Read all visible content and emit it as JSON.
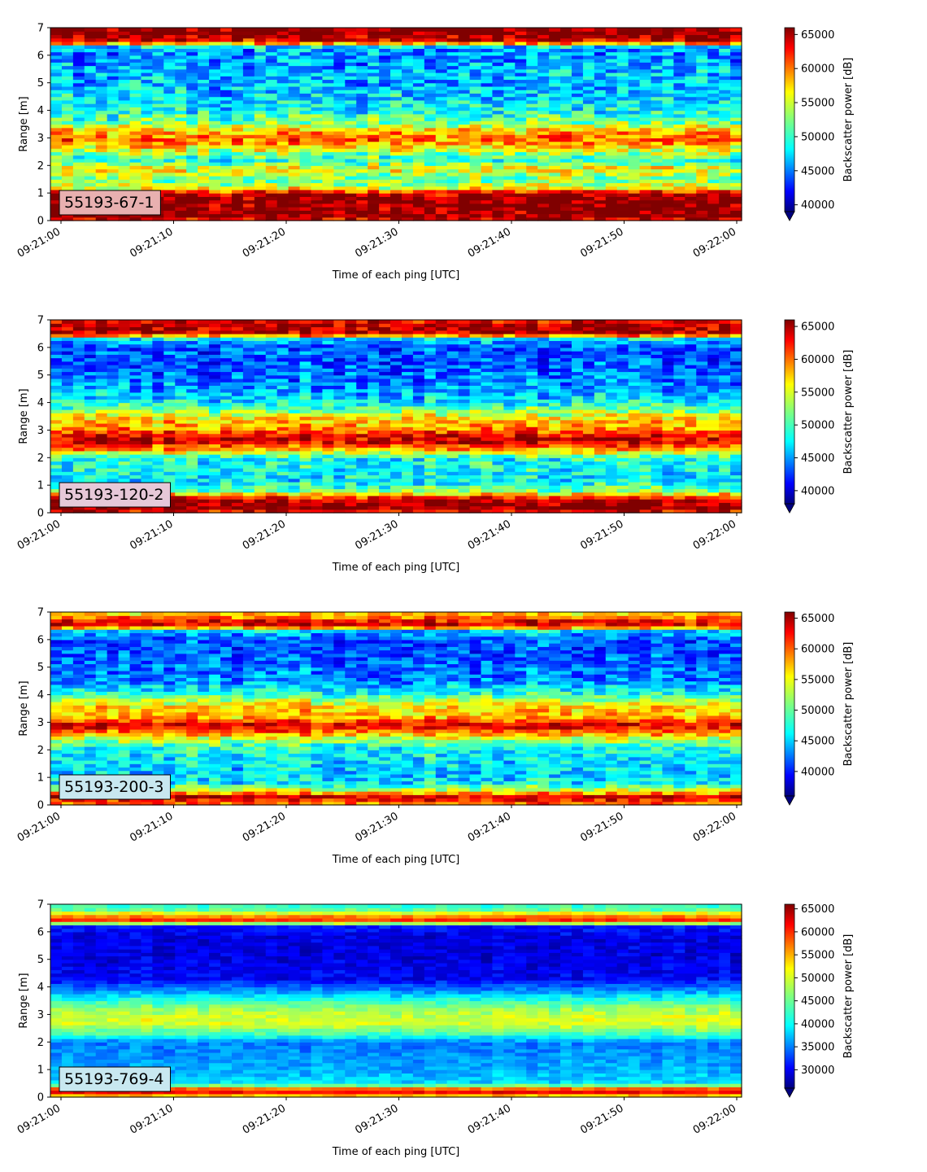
{
  "chart_data": [
    {
      "type": "heatmap",
      "label_box": "55193-67-1",
      "xlabel": "Time of each ping [UTC]",
      "ylabel": "Range [m]",
      "x_ticks": [
        "09:21:00",
        "09:21:10",
        "09:21:20",
        "09:21:30",
        "09:21:40",
        "09:21:50",
        "09:22:00"
      ],
      "y_ticks": [
        "0",
        "1",
        "2",
        "3",
        "4",
        "5",
        "6",
        "7"
      ],
      "ylim": [
        0,
        7
      ],
      "colorbar_label": "Backscatter power [dB]",
      "colorbar_ticks": [
        "40000",
        "45000",
        "50000",
        "55000",
        "60000",
        "65000"
      ],
      "vmin": 39000,
      "vmax": 66000,
      "label_box_color": "#e8b0b0",
      "profile": [
        [
          0.0,
          63000
        ],
        [
          0.2,
          66000
        ],
        [
          0.5,
          66000
        ],
        [
          0.8,
          66000
        ],
        [
          1.0,
          64000
        ],
        [
          1.2,
          55000
        ],
        [
          1.5,
          52000
        ],
        [
          1.9,
          56000
        ],
        [
          2.2,
          50000
        ],
        [
          2.6,
          55000
        ],
        [
          2.9,
          60000
        ],
        [
          3.2,
          58000
        ],
        [
          3.6,
          52000
        ],
        [
          4.0,
          49000
        ],
        [
          4.5,
          48000
        ],
        [
          5.0,
          47000
        ],
        [
          5.5,
          47000
        ],
        [
          6.0,
          46000
        ],
        [
          6.3,
          47000
        ],
        [
          6.5,
          63000
        ],
        [
          6.8,
          66000
        ],
        [
          7.0,
          66000
        ]
      ],
      "jitter": 7000
    },
    {
      "type": "heatmap",
      "label_box": "55193-120-2",
      "xlabel": "Time of each ping [UTC]",
      "ylabel": "Range [m]",
      "x_ticks": [
        "09:21:00",
        "09:21:10",
        "09:21:20",
        "09:21:30",
        "09:21:40",
        "09:21:50",
        "09:22:00"
      ],
      "y_ticks": [
        "0",
        "1",
        "2",
        "3",
        "4",
        "5",
        "6",
        "7"
      ],
      "ylim": [
        0,
        7
      ],
      "colorbar_label": "Backscatter power [dB]",
      "colorbar_ticks": [
        "40000",
        "45000",
        "50000",
        "55000",
        "60000",
        "65000"
      ],
      "vmin": 38000,
      "vmax": 66000,
      "label_box_color": "#e6c8d8",
      "profile": [
        [
          0.0,
          62000
        ],
        [
          0.2,
          66000
        ],
        [
          0.5,
          64000
        ],
        [
          0.8,
          52000
        ],
        [
          1.2,
          48000
        ],
        [
          1.6,
          49000
        ],
        [
          2.0,
          49000
        ],
        [
          2.3,
          58000
        ],
        [
          2.6,
          64000
        ],
        [
          2.8,
          63000
        ],
        [
          3.1,
          58000
        ],
        [
          3.4,
          57000
        ],
        [
          3.8,
          51000
        ],
        [
          4.2,
          47000
        ],
        [
          4.8,
          45000
        ],
        [
          5.5,
          44000
        ],
        [
          6.0,
          44000
        ],
        [
          6.3,
          47000
        ],
        [
          6.5,
          64000
        ],
        [
          6.8,
          65000
        ],
        [
          7.0,
          62000
        ]
      ],
      "jitter": 6500
    },
    {
      "type": "heatmap",
      "label_box": "55193-200-3",
      "xlabel": "Time of each ping [UTC]",
      "ylabel": "Range [m]",
      "x_ticks": [
        "09:21:00",
        "09:21:10",
        "09:21:20",
        "09:21:30",
        "09:21:40",
        "09:21:50",
        "09:22:00"
      ],
      "y_ticks": [
        "0",
        "1",
        "2",
        "3",
        "4",
        "5",
        "6",
        "7"
      ],
      "ylim": [
        0,
        7
      ],
      "colorbar_label": "Backscatter power [dB]",
      "colorbar_ticks": [
        "40000",
        "45000",
        "50000",
        "55000",
        "60000",
        "65000"
      ],
      "vmin": 36000,
      "vmax": 66000,
      "label_box_color": "#c8e8f0",
      "profile": [
        [
          0.0,
          58000
        ],
        [
          0.3,
          64000
        ],
        [
          0.5,
          55000
        ],
        [
          0.8,
          47000
        ],
        [
          1.2,
          46000
        ],
        [
          1.7,
          47000
        ],
        [
          2.1,
          48000
        ],
        [
          2.4,
          53000
        ],
        [
          2.7,
          60000
        ],
        [
          2.9,
          64000
        ],
        [
          3.2,
          57000
        ],
        [
          3.6,
          56000
        ],
        [
          4.0,
          49000
        ],
        [
          4.5,
          44000
        ],
        [
          5.2,
          43000
        ],
        [
          5.9,
          42000
        ],
        [
          6.3,
          45000
        ],
        [
          6.5,
          63000
        ],
        [
          6.7,
          62000
        ],
        [
          6.9,
          57000
        ],
        [
          7.0,
          56000
        ]
      ],
      "jitter": 6500
    },
    {
      "type": "heatmap",
      "label_box": "55193-769-4",
      "xlabel": "Time of each ping [UTC]",
      "ylabel": "Range [m]",
      "x_ticks": [
        "09:21:00",
        "09:21:10",
        "09:21:20",
        "09:21:30",
        "09:21:40",
        "09:21:50",
        "09:22:00"
      ],
      "y_ticks": [
        "0",
        "1",
        "2",
        "3",
        "4",
        "5",
        "6",
        "7"
      ],
      "ylim": [
        0,
        7
      ],
      "colorbar_label": "Backscatter power [dB]",
      "colorbar_ticks": [
        "30000",
        "35000",
        "40000",
        "45000",
        "50000",
        "55000",
        "60000",
        "65000"
      ],
      "vmin": 26000,
      "vmax": 66000,
      "label_box_color": "#c8e8f0",
      "profile": [
        [
          0.0,
          50000
        ],
        [
          0.2,
          62000
        ],
        [
          0.3,
          58000
        ],
        [
          0.5,
          40000
        ],
        [
          1.0,
          38000
        ],
        [
          1.5,
          37000
        ],
        [
          2.0,
          36000
        ],
        [
          2.3,
          44000
        ],
        [
          2.7,
          50000
        ],
        [
          3.0,
          49000
        ],
        [
          3.4,
          45000
        ],
        [
          3.8,
          38000
        ],
        [
          4.3,
          31000
        ],
        [
          5.0,
          30000
        ],
        [
          5.8,
          30000
        ],
        [
          6.2,
          32000
        ],
        [
          6.4,
          60000
        ],
        [
          6.6,
          55000
        ],
        [
          6.8,
          45000
        ],
        [
          7.0,
          43000
        ]
      ],
      "jitter": 4000
    }
  ]
}
